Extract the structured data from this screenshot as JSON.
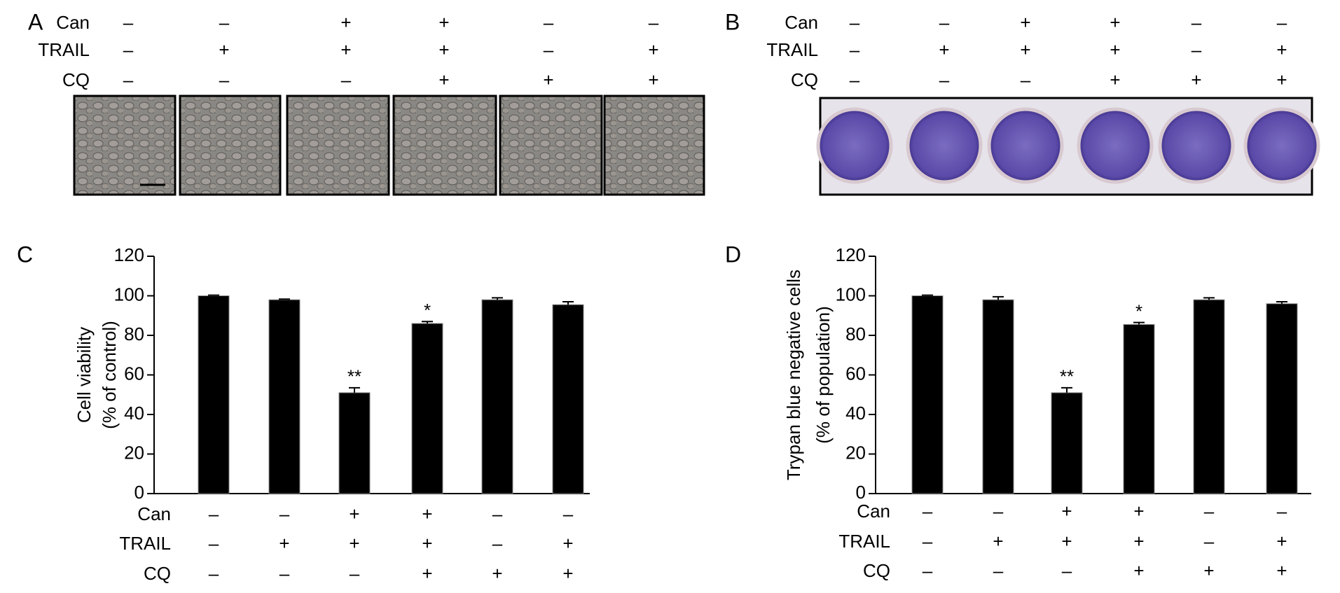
{
  "panel_a": {
    "panel_label": "A",
    "row_labels": [
      "Can",
      "TRAIL",
      "CQ"
    ],
    "signs": [
      [
        "–",
        "–",
        "+",
        "+",
        "–",
        "–"
      ],
      [
        "–",
        "+",
        "+",
        "+",
        "–",
        "+"
      ],
      [
        "–",
        "–",
        "–",
        "+",
        "+",
        "+"
      ]
    ]
  },
  "panel_b": {
    "panel_label": "B",
    "row_labels": [
      "Can",
      "TRAIL",
      "CQ"
    ],
    "signs": [
      [
        "–",
        "–",
        "+",
        "+",
        "–",
        "–"
      ],
      [
        "–",
        "+",
        "+",
        "+",
        "–",
        "+"
      ],
      [
        "–",
        "–",
        "–",
        "+",
        "+",
        "+"
      ]
    ]
  },
  "chart_data": [
    {
      "type": "bar",
      "panel_label": "C",
      "ylabel": [
        "Cell viability",
        "(% of control)"
      ],
      "values": [
        100,
        98,
        51,
        86,
        98,
        95.5
      ],
      "errors": [
        0.3,
        0.3,
        2.5,
        1,
        1,
        1.5
      ],
      "significance": [
        null,
        null,
        "**",
        "*",
        null,
        null
      ],
      "color": "#000000",
      "ylim": [
        0,
        120
      ],
      "yticks": [
        0,
        20,
        40,
        60,
        80,
        100,
        120
      ],
      "treatments": {
        "row_labels": [
          "Can",
          "TRAIL",
          "CQ"
        ],
        "signs": [
          [
            "–",
            "–",
            "+",
            "+",
            "–",
            "–"
          ],
          [
            "–",
            "+",
            "+",
            "+",
            "–",
            "+"
          ],
          [
            "–",
            "–",
            "–",
            "+",
            "+",
            "+"
          ]
        ]
      }
    },
    {
      "type": "bar",
      "panel_label": "D",
      "ylabel": [
        "Trypan blue negative cells",
        "(% of population)"
      ],
      "values": [
        100,
        98,
        51,
        85.5,
        98,
        96
      ],
      "errors": [
        0.3,
        1.5,
        2.5,
        1,
        1,
        1
      ],
      "significance": [
        null,
        null,
        "**",
        "*",
        null,
        null
      ],
      "color": "#000000",
      "ylim": [
        0,
        120
      ],
      "yticks": [
        0,
        20,
        40,
        60,
        80,
        100,
        120
      ],
      "treatments": {
        "row_labels": [
          "Can",
          "TRAIL",
          "CQ"
        ],
        "signs": [
          [
            "–",
            "–",
            "+",
            "+",
            "–",
            "–"
          ],
          [
            "–",
            "+",
            "+",
            "+",
            "–",
            "+"
          ],
          [
            "–",
            "–",
            "–",
            "+",
            "+",
            "+"
          ]
        ]
      }
    }
  ]
}
